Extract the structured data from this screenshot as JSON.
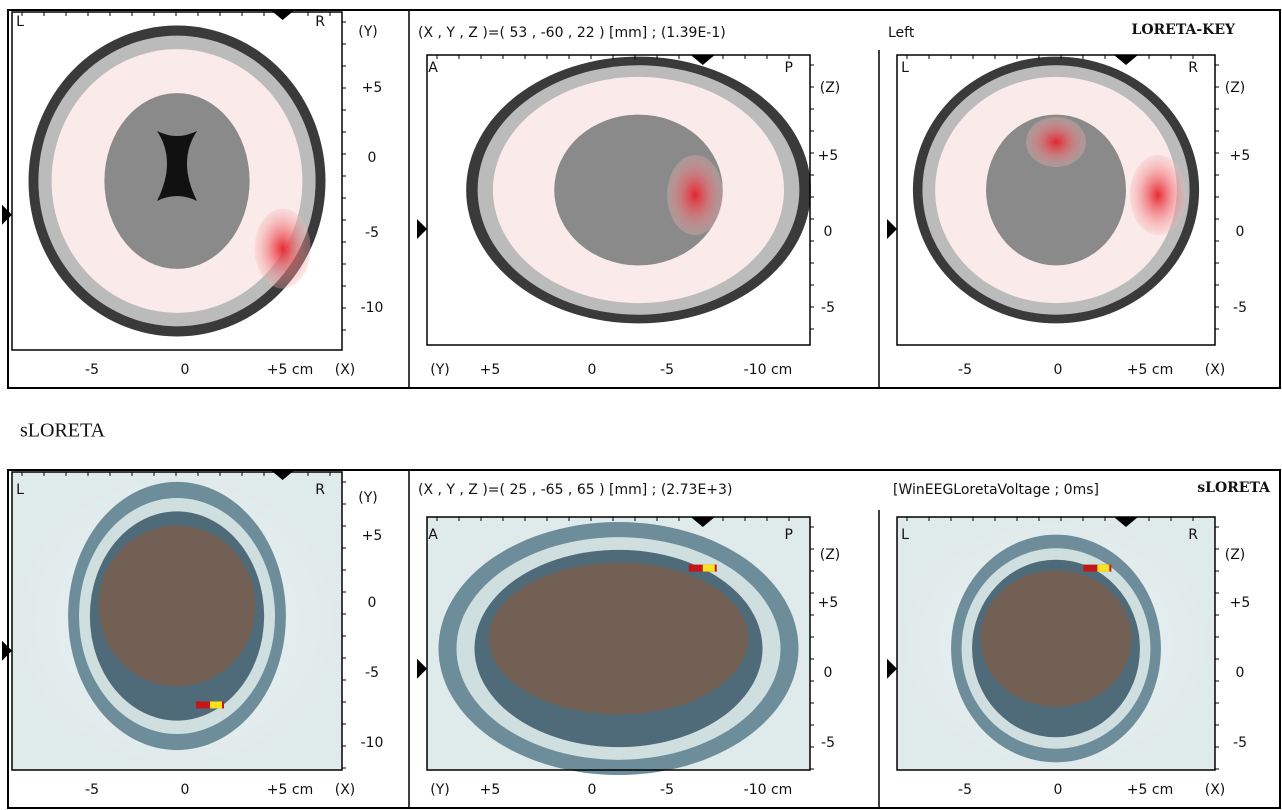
{
  "caption": "sLORETA",
  "panels": [
    {
      "header": {
        "coords": "(X , Y , Z )=( 53 , -60 , 22 ) [mm]  ;  (1.39E-1)",
        "note": "Left",
        "title": "LORETA-KEY"
      },
      "views": [
        {
          "corners": [
            "L",
            "R",
            "(Y)"
          ],
          "y_labels": [
            "+5",
            "0",
            "-5",
            "-10"
          ],
          "x_labels": [
            "-5",
            "0",
            "+5 cm",
            "(X)"
          ]
        },
        {
          "corners": [
            "A",
            "P",
            "(Z)"
          ],
          "y_labels": [
            "+5",
            "0",
            "-5"
          ],
          "x_labels": [
            "(Y)",
            "+5",
            "0",
            "-5",
            "-10 cm"
          ]
        },
        {
          "corners": [
            "L",
            "R",
            "(Z)"
          ],
          "y_labels": [
            "+5",
            "0",
            "-5"
          ],
          "x_labels": [
            "-5",
            "0",
            "+5 cm",
            "(X)"
          ]
        }
      ]
    },
    {
      "header": {
        "coords": "(X , Y , Z )=( 25 , -65 , 65 ) [mm]  ;  (2.73E+3)",
        "note": "[WinEEGLoretaVoltage ; 0ms]",
        "title": "sLORETA"
      },
      "views": [
        {
          "corners": [
            "L",
            "R",
            "(Y)"
          ],
          "y_labels": [
            "+5",
            "0",
            "-5",
            "-10"
          ],
          "x_labels": [
            "-5",
            "0",
            "+5 cm",
            "(X)"
          ]
        },
        {
          "corners": [
            "A",
            "P",
            "(Z)"
          ],
          "y_labels": [
            "+5",
            "0",
            "-5"
          ],
          "x_labels": [
            "(Y)",
            "+5",
            "0",
            "-5",
            "-10 cm"
          ]
        },
        {
          "corners": [
            "L",
            "R",
            "(Z)"
          ],
          "y_labels": [
            "+5",
            "0",
            "-5"
          ],
          "x_labels": [
            "-5",
            "0",
            "+5 cm",
            "(X)"
          ]
        }
      ]
    }
  ]
}
